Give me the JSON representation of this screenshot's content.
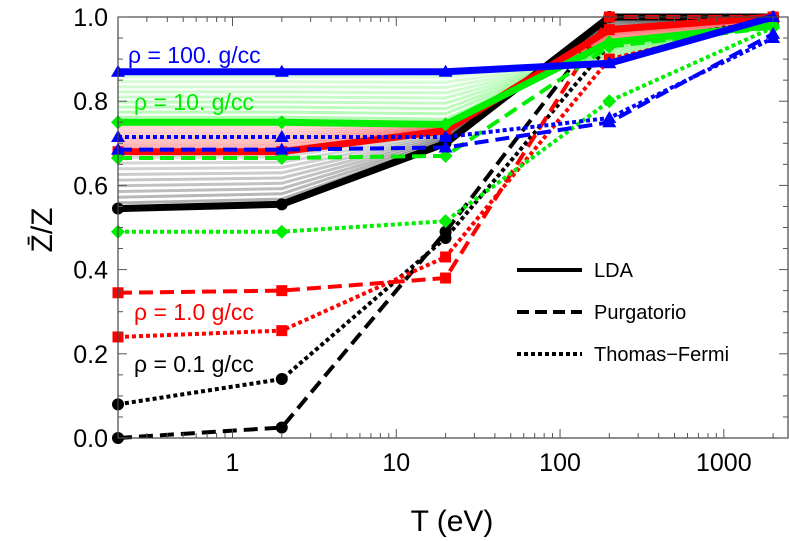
{
  "chart_data": {
    "type": "line",
    "title": "",
    "xlabel": "T (eV)",
    "ylabel": "Z̄/Z",
    "xscale": "log",
    "xlim": [
      0.2,
      2500
    ],
    "ylim": [
      0.0,
      1.0
    ],
    "grid": false,
    "legend_position": "center-right",
    "x_ticks": [
      {
        "value": 1,
        "label": "1"
      },
      {
        "value": 10,
        "label": "10"
      },
      {
        "value": 100,
        "label": "100"
      },
      {
        "value": 1000,
        "label": "1000"
      }
    ],
    "y_ticks": [
      {
        "value": 0.0,
        "label": "0.0"
      },
      {
        "value": 0.2,
        "label": "0.2"
      },
      {
        "value": 0.4,
        "label": "0.4"
      },
      {
        "value": 0.6,
        "label": "0.6"
      },
      {
        "value": 0.8,
        "label": "0.8"
      },
      {
        "value": 1.0,
        "label": "1.0"
      }
    ],
    "x": [
      0.2,
      2,
      20,
      200,
      2000
    ],
    "legend": [
      {
        "label": "LDA",
        "style": "solid"
      },
      {
        "label": "Purgatorio",
        "style": "dashed"
      },
      {
        "label": "Thomas−Fermi",
        "style": "dotted"
      }
    ],
    "annotations": [
      {
        "text": "ρ = 100. g/cc",
        "color": "#0000ff"
      },
      {
        "text": "ρ = 10. g/cc",
        "color": "#00ee00"
      },
      {
        "text": "ρ = 1.0 g/cc",
        "color": "#ff0000"
      },
      {
        "text": "ρ = 0.1 g/cc",
        "color": "#000000"
      }
    ],
    "series": [
      {
        "density": "100.",
        "method": "LDA",
        "color": "#0000ff",
        "values": [
          0.87,
          0.87,
          0.87,
          0.89,
          1.0
        ]
      },
      {
        "density": "100.",
        "method": "Purgatorio",
        "color": "#0000ff",
        "values": [
          0.685,
          0.685,
          0.69,
          0.75,
          0.96
        ]
      },
      {
        "density": "100.",
        "method": "Thomas-Fermi",
        "color": "#0000ff",
        "values": [
          0.715,
          0.715,
          0.715,
          0.76,
          0.95
        ]
      },
      {
        "density": "10.",
        "method": "LDA",
        "color": "#00ee00",
        "values": [
          0.75,
          0.75,
          0.745,
          0.94,
          0.98
        ]
      },
      {
        "density": "10.",
        "method": "Purgatorio",
        "color": "#00ee00",
        "values": [
          0.665,
          0.665,
          0.67,
          0.93,
          0.975
        ]
      },
      {
        "density": "10.",
        "method": "Thomas-Fermi",
        "color": "#00ee00",
        "values": [
          0.49,
          0.49,
          0.515,
          0.8,
          0.975
        ]
      },
      {
        "density": "1.0",
        "method": "LDA",
        "color": "#ff0000",
        "values": [
          0.68,
          0.68,
          0.73,
          0.97,
          1.0
        ]
      },
      {
        "density": "1.0",
        "method": "Purgatorio",
        "color": "#ff0000",
        "values": [
          0.345,
          0.35,
          0.38,
          1.0,
          1.0
        ]
      },
      {
        "density": "1.0",
        "method": "Thomas-Fermi",
        "color": "#ff0000",
        "values": [
          0.24,
          0.255,
          0.43,
          0.9,
          0.99
        ]
      },
      {
        "density": "0.1",
        "method": "LDA",
        "color": "#000000",
        "values": [
          0.545,
          0.555,
          0.7,
          1.0,
          1.0
        ]
      },
      {
        "density": "0.1",
        "method": "Purgatorio",
        "color": "#000000",
        "values": [
          0.0,
          0.025,
          0.49,
          1.0,
          1.0
        ]
      },
      {
        "density": "0.1",
        "method": "Thomas-Fermi",
        "color": "#000000",
        "values": [
          0.08,
          0.14,
          0.475,
          0.935,
          0.99
        ]
      }
    ]
  }
}
